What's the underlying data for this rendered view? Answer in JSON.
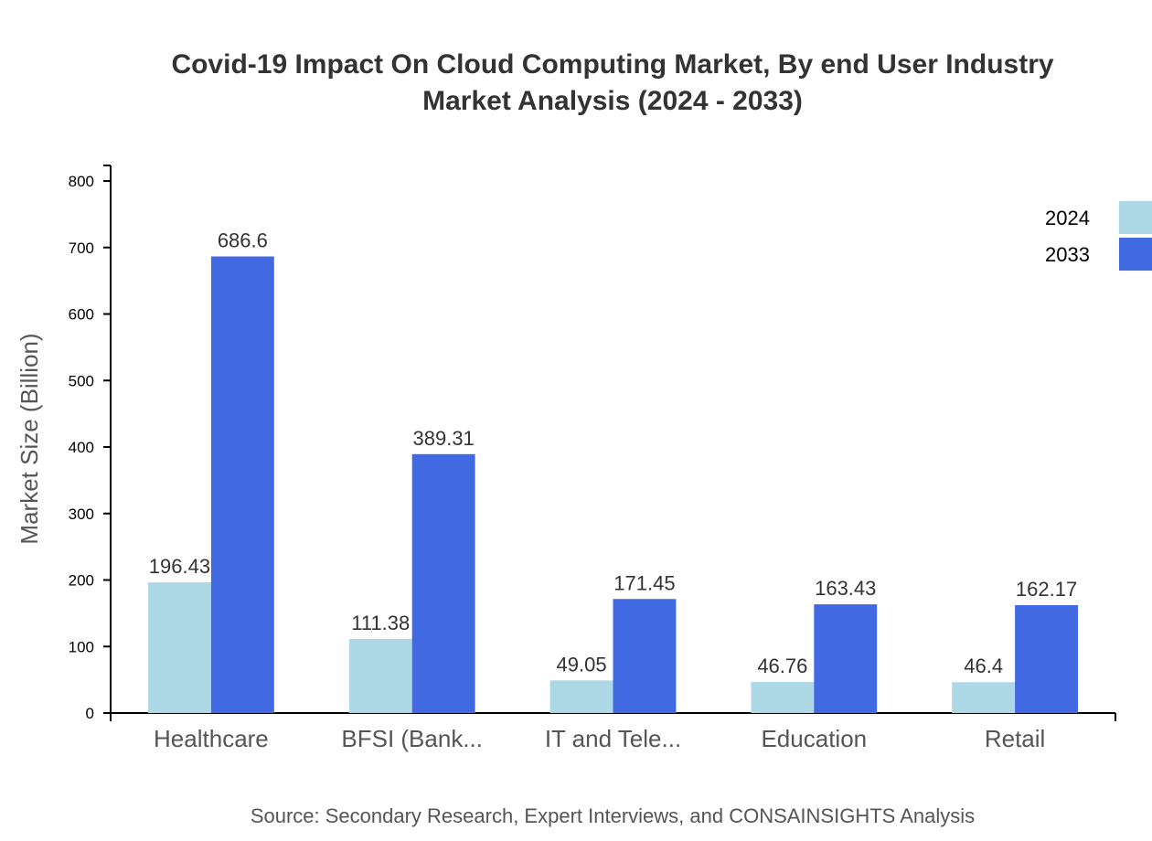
{
  "chart_data": {
    "type": "bar",
    "title": "Covid-19 Impact On Cloud Computing Market, By end User Industry",
    "subtitle": "Market Analysis (2024 - 2033)",
    "ylabel": "Market Size (Billion)",
    "xlabel": "",
    "ylim": [
      0,
      800
    ],
    "yticks": [
      0,
      100,
      200,
      300,
      400,
      500,
      600,
      700,
      800
    ],
    "categories": [
      "Healthcare",
      "BFSI (Bank...",
      "IT and Tele...",
      "Education",
      "Retail"
    ],
    "series": [
      {
        "name": "2024",
        "color": "#add8e6",
        "values": [
          196.43,
          111.38,
          49.05,
          46.76,
          46.4
        ]
      },
      {
        "name": "2033",
        "color": "#4169e1",
        "values": [
          686.6,
          389.31,
          171.45,
          163.43,
          162.17
        ]
      }
    ],
    "legend_position": "top-right",
    "grid": false,
    "source": "Source: Secondary Research, Expert Interviews, and CONSAINSIGHTS Analysis"
  }
}
